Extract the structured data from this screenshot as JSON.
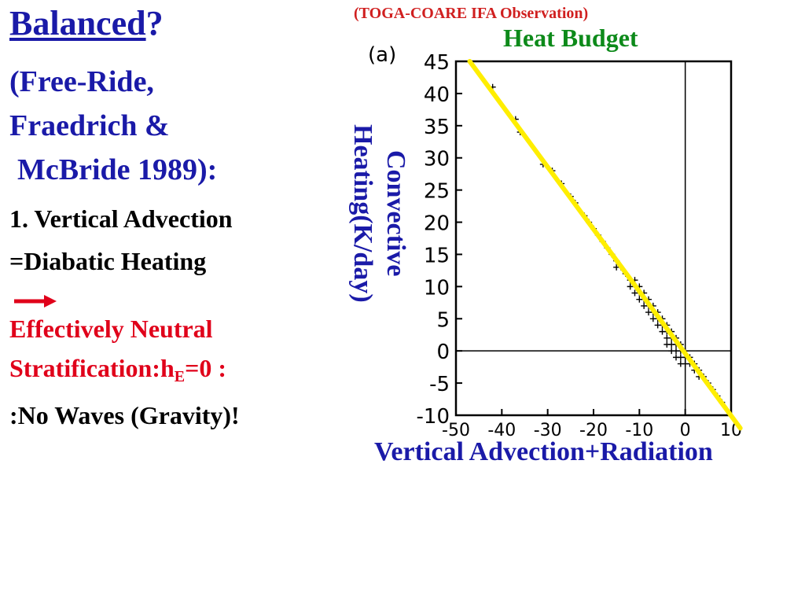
{
  "slide": {
    "title": "Balanced",
    "title_suffix": "?",
    "subtitle_lines": [
      "(Free-Ride,",
      "Fraedrich &",
      "McBride 1989):"
    ],
    "point_lines": [
      "1. Vertical Advection",
      "=Diabatic Heating"
    ],
    "red_line1": "Effectively Neutral",
    "red_line2_pre": "Stratification:h",
    "red_line2_sub": "E",
    "red_line2_post": "=0 :",
    "conclusion": ":No Waves (Gravity)!",
    "source_note": "(TOGA-COARE IFA Observation)",
    "heat_budget_label": "Heat Budget",
    "colors": {
      "blue": "#1a1aa8",
      "red": "#e0001a",
      "green": "#0d8a1a",
      "fit_line": "#ffee00"
    }
  },
  "chart_data": {
    "type": "scatter",
    "panel_label": "(a)",
    "xlabel": "Vertical Advection+Radiation",
    "ylabel_lines": [
      "Convective",
      "Heating(K/day)"
    ],
    "xlim": [
      -50,
      10
    ],
    "ylim": [
      -10,
      45
    ],
    "x_ticks": [
      "-50",
      "-40",
      "-30",
      "-20",
      "-10",
      "0",
      "10"
    ],
    "y_ticks": [
      "45",
      "40",
      "35",
      "30",
      "25",
      "20",
      "15",
      "10",
      "5",
      "0",
      "-5",
      "-10"
    ],
    "fit_line": {
      "x": [
        -47,
        12
      ],
      "y": [
        45,
        -12
      ]
    },
    "reference_lines": {
      "x": 0,
      "y": 0
    },
    "points": {
      "x": [
        -42,
        -37,
        -36,
        -31,
        -29,
        -27,
        -25,
        -24,
        -22,
        -21,
        -20,
        -19,
        -18,
        -17,
        -16,
        -15,
        -15,
        -14,
        -13,
        -12,
        -12,
        -11,
        -11,
        -10,
        -10,
        -10,
        -9,
        -9,
        -9,
        -8,
        -8,
        -8,
        -7,
        -7,
        -7,
        -6,
        -6,
        -6,
        -5,
        -5,
        -5,
        -4,
        -4,
        -4,
        -4,
        -3,
        -3,
        -3,
        -3,
        -2,
        -2,
        -2,
        -2,
        -1,
        -1,
        -1,
        -1,
        0,
        0,
        0,
        1,
        1,
        2,
        2,
        3,
        3,
        4,
        5,
        6,
        7,
        8
      ],
      "y": [
        41,
        36,
        34,
        29,
        28,
        26,
        24,
        23,
        21,
        20,
        19,
        18,
        17,
        16,
        15,
        14,
        13,
        13,
        12,
        11,
        10,
        11,
        9,
        10,
        9,
        8,
        9,
        8,
        7,
        8,
        7,
        6,
        7,
        6,
        5,
        6,
        5,
        4,
        5,
        4,
        3,
        4,
        3,
        2,
        1,
        3,
        2,
        1,
        0,
        2,
        1,
        0,
        -1,
        1,
        0,
        -1,
        -2,
        0,
        -1,
        -2,
        -1,
        -2,
        -2,
        -3,
        -3,
        -4,
        -4,
        -5,
        -6,
        -7,
        -8
      ]
    }
  }
}
